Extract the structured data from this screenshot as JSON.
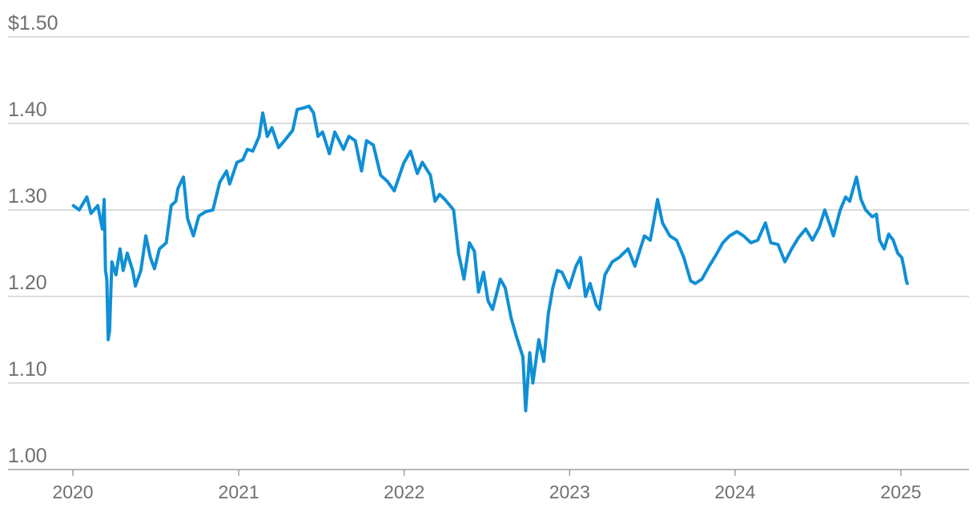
{
  "chart_data": {
    "type": "line",
    "title": "",
    "xlabel": "",
    "ylabel": "",
    "ylim": [
      1.0,
      1.5
    ],
    "xlim": [
      "2020-01-01",
      "2025-06-15"
    ],
    "y_ticks": [
      {
        "value": 1.5,
        "label": "$1.50"
      },
      {
        "value": 1.4,
        "label": "1.40"
      },
      {
        "value": 1.3,
        "label": "1.30"
      },
      {
        "value": 1.2,
        "label": "1.20"
      },
      {
        "value": 1.1,
        "label": "1.10"
      },
      {
        "value": 1.0,
        "label": "1.00"
      }
    ],
    "x_ticks": [
      {
        "value": "2020-01-01",
        "label": "2020"
      },
      {
        "value": "2021-01-01",
        "label": "2021"
      },
      {
        "value": "2022-01-01",
        "label": "2022"
      },
      {
        "value": "2023-01-01",
        "label": "2023"
      },
      {
        "value": "2024-01-01",
        "label": "2024"
      },
      {
        "value": "2025-01-01",
        "label": "2025"
      }
    ],
    "grid": true,
    "legend": "none",
    "series": [
      {
        "color": "#0f8fd6",
        "points": [
          [
            "2020-01-02",
            1.305
          ],
          [
            "2020-01-15",
            1.3
          ],
          [
            "2020-02-01",
            1.315
          ],
          [
            "2020-02-10",
            1.296
          ],
          [
            "2020-02-25",
            1.305
          ],
          [
            "2020-03-06",
            1.278
          ],
          [
            "2020-03-10",
            1.312
          ],
          [
            "2020-03-13",
            1.23
          ],
          [
            "2020-03-16",
            1.22
          ],
          [
            "2020-03-19",
            1.15
          ],
          [
            "2020-03-22",
            1.16
          ],
          [
            "2020-03-27",
            1.24
          ],
          [
            "2020-04-05",
            1.225
          ],
          [
            "2020-04-14",
            1.255
          ],
          [
            "2020-04-21",
            1.23
          ],
          [
            "2020-04-30",
            1.25
          ],
          [
            "2020-05-12",
            1.23
          ],
          [
            "2020-05-18",
            1.212
          ],
          [
            "2020-05-30",
            1.23
          ],
          [
            "2020-06-10",
            1.27
          ],
          [
            "2020-06-20",
            1.245
          ],
          [
            "2020-06-29",
            1.232
          ],
          [
            "2020-07-10",
            1.255
          ],
          [
            "2020-07-25",
            1.262
          ],
          [
            "2020-08-05",
            1.305
          ],
          [
            "2020-08-15",
            1.31
          ],
          [
            "2020-08-20",
            1.325
          ],
          [
            "2020-09-01",
            1.338
          ],
          [
            "2020-09-10",
            1.29
          ],
          [
            "2020-09-23",
            1.27
          ],
          [
            "2020-10-05",
            1.293
          ],
          [
            "2020-10-20",
            1.298
          ],
          [
            "2020-11-05",
            1.3
          ],
          [
            "2020-11-20",
            1.332
          ],
          [
            "2020-12-05",
            1.345
          ],
          [
            "2020-12-12",
            1.33
          ],
          [
            "2020-12-28",
            1.355
          ],
          [
            "2021-01-10",
            1.358
          ],
          [
            "2021-01-20",
            1.37
          ],
          [
            "2021-02-01",
            1.368
          ],
          [
            "2021-02-15",
            1.385
          ],
          [
            "2021-02-23",
            1.412
          ],
          [
            "2021-03-05",
            1.385
          ],
          [
            "2021-03-15",
            1.395
          ],
          [
            "2021-03-30",
            1.372
          ],
          [
            "2021-04-15",
            1.382
          ],
          [
            "2021-04-30",
            1.392
          ],
          [
            "2021-05-10",
            1.416
          ],
          [
            "2021-05-25",
            1.418
          ],
          [
            "2021-06-05",
            1.42
          ],
          [
            "2021-06-15",
            1.412
          ],
          [
            "2021-06-25",
            1.385
          ],
          [
            "2021-07-05",
            1.39
          ],
          [
            "2021-07-20",
            1.365
          ],
          [
            "2021-08-01",
            1.39
          ],
          [
            "2021-08-20",
            1.37
          ],
          [
            "2021-09-01",
            1.385
          ],
          [
            "2021-09-15",
            1.38
          ],
          [
            "2021-09-29",
            1.345
          ],
          [
            "2021-10-10",
            1.38
          ],
          [
            "2021-10-25",
            1.375
          ],
          [
            "2021-11-10",
            1.34
          ],
          [
            "2021-11-25",
            1.333
          ],
          [
            "2021-12-10",
            1.322
          ],
          [
            "2021-12-31",
            1.354
          ],
          [
            "2022-01-15",
            1.368
          ],
          [
            "2022-01-30",
            1.342
          ],
          [
            "2022-02-10",
            1.355
          ],
          [
            "2022-02-28",
            1.34
          ],
          [
            "2022-03-10",
            1.31
          ],
          [
            "2022-03-20",
            1.318
          ],
          [
            "2022-04-01",
            1.312
          ],
          [
            "2022-04-20",
            1.3
          ],
          [
            "2022-05-01",
            1.25
          ],
          [
            "2022-05-13",
            1.22
          ],
          [
            "2022-05-25",
            1.262
          ],
          [
            "2022-06-05",
            1.252
          ],
          [
            "2022-06-14",
            1.205
          ],
          [
            "2022-06-25",
            1.228
          ],
          [
            "2022-07-05",
            1.195
          ],
          [
            "2022-07-15",
            1.185
          ],
          [
            "2022-08-01",
            1.22
          ],
          [
            "2022-08-12",
            1.21
          ],
          [
            "2022-08-25",
            1.175
          ],
          [
            "2022-09-05",
            1.155
          ],
          [
            "2022-09-20",
            1.13
          ],
          [
            "2022-09-26",
            1.068
          ],
          [
            "2022-09-29",
            1.09
          ],
          [
            "2022-10-05",
            1.135
          ],
          [
            "2022-10-12",
            1.1
          ],
          [
            "2022-10-25",
            1.15
          ],
          [
            "2022-11-05",
            1.125
          ],
          [
            "2022-11-15",
            1.18
          ],
          [
            "2022-11-25",
            1.21
          ],
          [
            "2022-12-05",
            1.23
          ],
          [
            "2022-12-15",
            1.228
          ],
          [
            "2022-12-31",
            1.21
          ],
          [
            "2023-01-15",
            1.235
          ],
          [
            "2023-01-25",
            1.245
          ],
          [
            "2023-02-05",
            1.2
          ],
          [
            "2023-02-15",
            1.215
          ],
          [
            "2023-03-01",
            1.19
          ],
          [
            "2023-03-08",
            1.185
          ],
          [
            "2023-03-20",
            1.225
          ],
          [
            "2023-04-05",
            1.24
          ],
          [
            "2023-04-20",
            1.245
          ],
          [
            "2023-05-10",
            1.255
          ],
          [
            "2023-05-25",
            1.235
          ],
          [
            "2023-06-15",
            1.27
          ],
          [
            "2023-06-28",
            1.265
          ],
          [
            "2023-07-05",
            1.285
          ],
          [
            "2023-07-14",
            1.312
          ],
          [
            "2023-07-25",
            1.285
          ],
          [
            "2023-08-10",
            1.27
          ],
          [
            "2023-08-25",
            1.265
          ],
          [
            "2023-09-10",
            1.245
          ],
          [
            "2023-09-25",
            1.218
          ],
          [
            "2023-10-05",
            1.215
          ],
          [
            "2023-10-20",
            1.22
          ],
          [
            "2023-11-05",
            1.235
          ],
          [
            "2023-11-20",
            1.248
          ],
          [
            "2023-12-05",
            1.262
          ],
          [
            "2023-12-20",
            1.27
          ],
          [
            "2024-01-05",
            1.275
          ],
          [
            "2024-01-20",
            1.27
          ],
          [
            "2024-02-05",
            1.262
          ],
          [
            "2024-02-20",
            1.265
          ],
          [
            "2024-03-08",
            1.285
          ],
          [
            "2024-03-20",
            1.262
          ],
          [
            "2024-04-05",
            1.26
          ],
          [
            "2024-04-20",
            1.24
          ],
          [
            "2024-05-05",
            1.255
          ],
          [
            "2024-05-20",
            1.268
          ],
          [
            "2024-06-05",
            1.278
          ],
          [
            "2024-06-20",
            1.265
          ],
          [
            "2024-07-05",
            1.28
          ],
          [
            "2024-07-17",
            1.3
          ],
          [
            "2024-07-30",
            1.28
          ],
          [
            "2024-08-05",
            1.27
          ],
          [
            "2024-08-20",
            1.3
          ],
          [
            "2024-09-01",
            1.315
          ],
          [
            "2024-09-10",
            1.31
          ],
          [
            "2024-09-25",
            1.338
          ],
          [
            "2024-10-05",
            1.312
          ],
          [
            "2024-10-15",
            1.3
          ],
          [
            "2024-10-30",
            1.292
          ],
          [
            "2024-11-08",
            1.295
          ],
          [
            "2024-11-15",
            1.265
          ],
          [
            "2024-11-25",
            1.255
          ],
          [
            "2024-12-05",
            1.272
          ],
          [
            "2024-12-15",
            1.265
          ],
          [
            "2024-12-25",
            1.25
          ],
          [
            "2025-01-03",
            1.245
          ],
          [
            "2025-01-08",
            1.232
          ],
          [
            "2025-01-13",
            1.218
          ],
          [
            "2025-01-15",
            1.215
          ]
        ]
      }
    ]
  }
}
